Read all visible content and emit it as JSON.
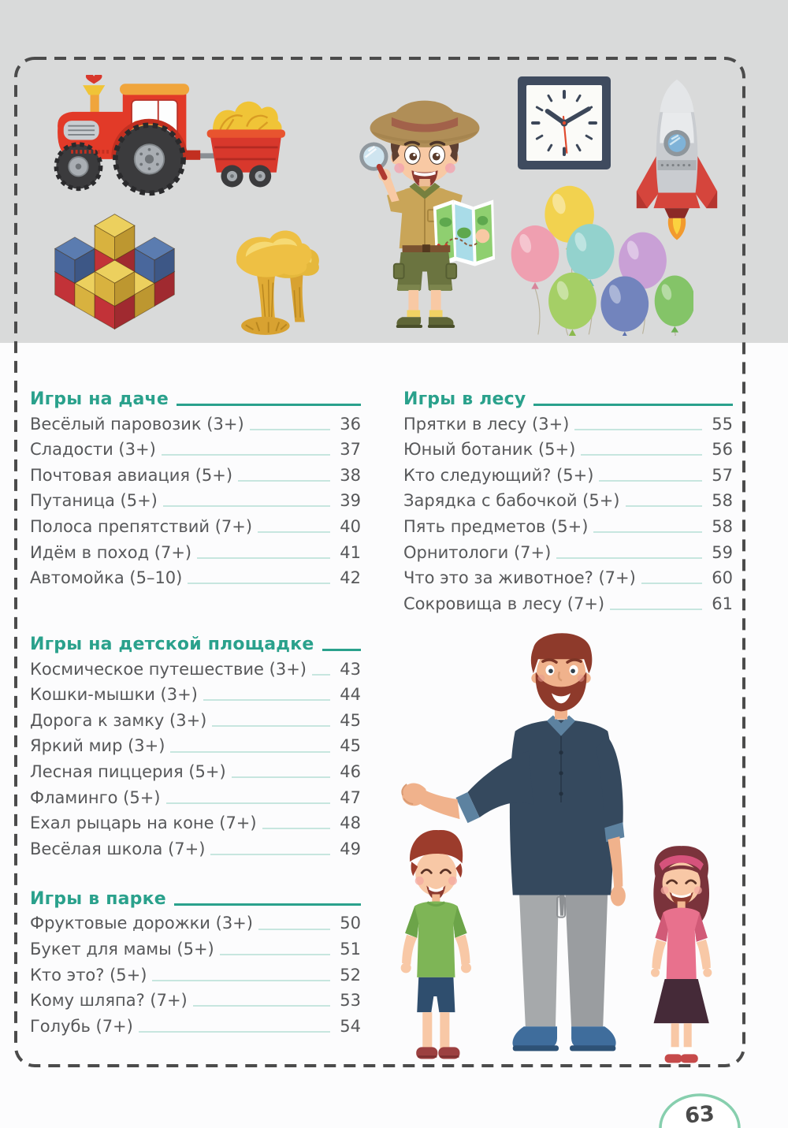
{
  "page": {
    "number": "63"
  },
  "toc": {
    "columns": [
      {
        "sections": [
          {
            "title": "Игры на даче",
            "items": [
              {
                "label": "Весёлый паровозик (3+)",
                "page": "36"
              },
              {
                "label": "Сладости (3+)",
                "page": "37"
              },
              {
                "label": "Почтовая авиация (5+)",
                "page": "38"
              },
              {
                "label": "Путаница (5+)",
                "page": "39"
              },
              {
                "label": "Полоса препятствий (7+)",
                "page": "40"
              },
              {
                "label": "Идём в поход (7+)",
                "page": "41"
              },
              {
                "label": "Автомойка (5–10)",
                "page": "42"
              }
            ]
          },
          {
            "title": "Игры на детской площадке",
            "items": [
              {
                "label": "Космическое путешествие (3+)",
                "page": "43"
              },
              {
                "label": "Кошки-мышки (3+)",
                "page": "44"
              },
              {
                "label": "Дорога к замку (3+)",
                "page": "45"
              },
              {
                "label": "Яркий мир (3+)",
                "page": "45"
              },
              {
                "label": "Лесная пиццерия (5+)",
                "page": "46"
              },
              {
                "label": "Фламинго (5+)",
                "page": "47"
              },
              {
                "label": "Ехал рыцарь на коне (7+)",
                "page": "48"
              },
              {
                "label": "Весёлая школа (7+)",
                "page": "49"
              }
            ]
          },
          {
            "title": "Игры в парке",
            "items": [
              {
                "label": "Фруктовые дорожки (3+)",
                "page": "50"
              },
              {
                "label": "Букет для мамы (5+)",
                "page": "51"
              },
              {
                "label": "Кто это? (5+)",
                "page": "52"
              },
              {
                "label": "Кому шляпа? (7+)",
                "page": "53"
              },
              {
                "label": "Голубь (7+)",
                "page": "54"
              }
            ]
          }
        ]
      },
      {
        "sections": [
          {
            "title": "Игры в лесу",
            "items": [
              {
                "label": "Прятки в лесу (3+)",
                "page": "55"
              },
              {
                "label": "Юный ботаник (5+)",
                "page": "56"
              },
              {
                "label": "Кто следующий? (5+)",
                "page": "57"
              },
              {
                "label": "Зарядка с бабочкой (5+)",
                "page": "58"
              },
              {
                "label": "Пять предметов (5+)",
                "page": "58"
              },
              {
                "label": "Орнитологи (7+)",
                "page": "59"
              },
              {
                "label": "Что это за животное? (7+)",
                "page": "60"
              },
              {
                "label": "Сокровища в лесу (7+)",
                "page": "61"
              }
            ]
          }
        ]
      }
    ]
  },
  "illustrations": {
    "board_items": [
      {
        "name": "tractor-with-hay-cart"
      },
      {
        "name": "toy-blocks"
      },
      {
        "name": "chanterelle-mushrooms"
      },
      {
        "name": "explorer-boy-with-magnifier-and-map"
      },
      {
        "name": "wall-clock",
        "time": "10:10"
      },
      {
        "name": "rocket"
      },
      {
        "name": "balloons",
        "count": 7
      }
    ],
    "bottom_illustration": {
      "name": "father-with-son-and-daughter"
    }
  },
  "colors": {
    "accent_teal": "#2aa18c",
    "toc_text": "#57585a",
    "leader_line": "#c7e6df",
    "dashed_border": "#4b4b4b",
    "board_background": "#d9dada",
    "badge_outline": "#87cfae"
  }
}
